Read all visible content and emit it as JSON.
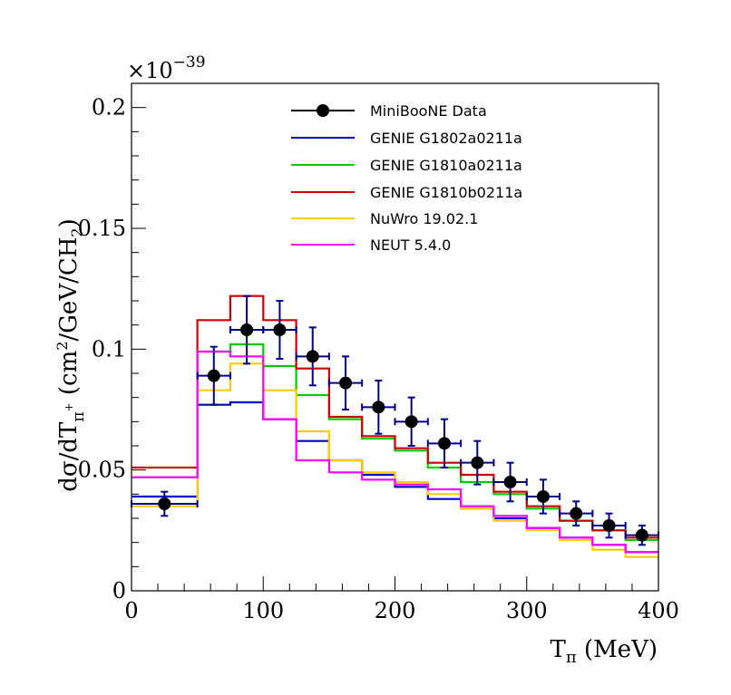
{
  "chart_data": {
    "type": "line",
    "title": "",
    "xlabel": "T",
    "xlabel_sub": "π",
    "xlabel_unit": " (MeV)",
    "ylabel_prefix": "dσ/dT",
    "ylabel_sub": "π",
    "ylabel_sup": "+",
    "ylabel_unit_open": " (cm",
    "ylabel_unit_sup": "2",
    "ylabel_unit_mid": "/GeV/CH",
    "ylabel_unit_sub": "2",
    "ylabel_unit_close": ")",
    "y_multiplier_base": "×10",
    "y_multiplier_exp": "−39",
    "xlim": [
      0,
      400
    ],
    "ylim": [
      0,
      0.21
    ],
    "x_ticks": [
      0,
      100,
      200,
      300,
      400
    ],
    "x_tick_labels": [
      "0",
      "100",
      "200",
      "300",
      "400"
    ],
    "y_ticks": [
      0,
      0.05,
      0.1,
      0.15,
      0.2
    ],
    "y_tick_labels": [
      "0",
      "0.05",
      "0.1",
      "0.15",
      "0.2"
    ],
    "bin_edges": [
      0,
      50,
      75,
      100,
      125,
      150,
      175,
      200,
      225,
      250,
      275,
      300,
      325,
      350,
      375,
      400
    ],
    "data": {
      "name": "MiniBooNE Data",
      "color": "#000000",
      "error_color": "#00008b",
      "x": [
        25,
        62.5,
        87.5,
        112.5,
        137.5,
        162.5,
        187.5,
        212.5,
        237.5,
        262.5,
        287.5,
        312.5,
        337.5,
        362.5,
        387.5
      ],
      "y": [
        0.036,
        0.089,
        0.108,
        0.108,
        0.097,
        0.086,
        0.076,
        0.07,
        0.061,
        0.053,
        0.045,
        0.039,
        0.032,
        0.027,
        0.023
      ],
      "yerr": [
        0.005,
        0.012,
        0.014,
        0.012,
        0.012,
        0.011,
        0.011,
        0.01,
        0.01,
        0.009,
        0.008,
        0.007,
        0.005,
        0.005,
        0.004
      ]
    },
    "series": [
      {
        "name": "GENIE G1802a0211a",
        "color": "#0000cc",
        "values": [
          0.039,
          0.077,
          0.078,
          0.071,
          0.062,
          0.054,
          0.048,
          0.043,
          0.038,
          0.034,
          0.03,
          0.026,
          0.022,
          0.019,
          0.016
        ]
      },
      {
        "name": "GENIE G1810a0211a",
        "color": "#00cc00",
        "values": [
          0.047,
          0.099,
          0.102,
          0.093,
          0.081,
          0.071,
          0.063,
          0.058,
          0.051,
          0.045,
          0.04,
          0.034,
          0.029,
          0.025,
          0.021
        ]
      },
      {
        "name": "GENIE G1810b0211a",
        "color": "#cc0000",
        "values": [
          0.051,
          0.112,
          0.122,
          0.112,
          0.092,
          0.072,
          0.064,
          0.059,
          0.053,
          0.048,
          0.041,
          0.035,
          0.029,
          0.025,
          0.022
        ]
      },
      {
        "name": "NuWro 19.02.1",
        "color": "#ffcc00",
        "values": [
          0.035,
          0.083,
          0.094,
          0.083,
          0.066,
          0.054,
          0.049,
          0.045,
          0.04,
          0.034,
          0.029,
          0.025,
          0.021,
          0.017,
          0.014
        ]
      },
      {
        "name": "NEUT 5.4.0",
        "color": "#ff00ff",
        "values": [
          0.047,
          0.099,
          0.097,
          0.071,
          0.054,
          0.049,
          0.046,
          0.044,
          0.042,
          0.035,
          0.031,
          0.026,
          0.022,
          0.019,
          0.016
        ]
      }
    ]
  }
}
